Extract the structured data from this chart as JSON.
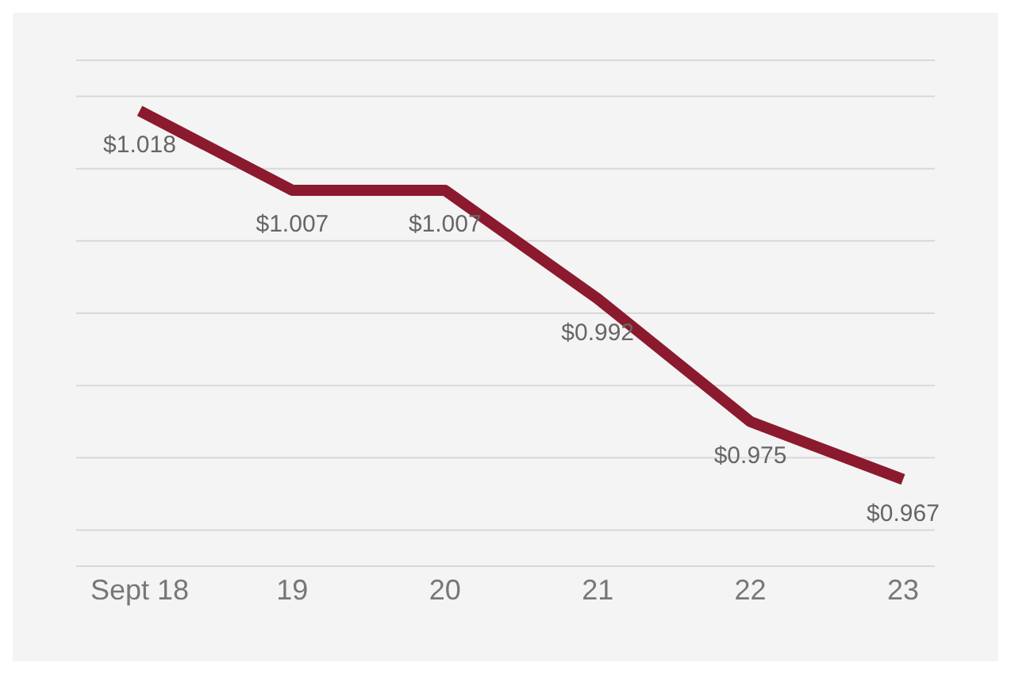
{
  "chart_data": {
    "type": "line",
    "categories": [
      "Sept 18",
      "19",
      "20",
      "21",
      "22",
      "23"
    ],
    "series": [
      {
        "color": "#8b1a2e",
        "values": [
          1.018,
          1.007,
          1.007,
          0.992,
          0.975,
          0.967
        ],
        "value_labels": [
          "$1.018",
          "$1.007",
          "$1.007",
          "$0.992",
          "$0.975",
          "$0.967"
        ]
      }
    ],
    "ylim": [
      0.955,
      1.025
    ],
    "yticks": [
      {
        "value": 0.96,
        "label": null
      },
      {
        "value": 0.97,
        "label": null
      },
      {
        "value": 0.98,
        "label": null
      },
      {
        "value": 0.99,
        "label": null
      },
      {
        "value": 1.0,
        "label": null
      },
      {
        "value": 1.01,
        "label": null
      },
      {
        "value": 1.02,
        "label": null
      }
    ],
    "grid": "y",
    "tick_labels": "x",
    "marker": "none",
    "line_style": "solid"
  }
}
